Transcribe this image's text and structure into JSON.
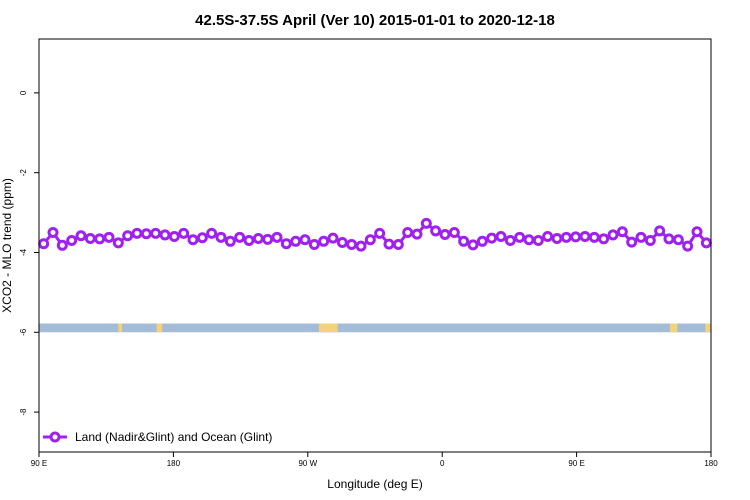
{
  "chart_data": {
    "type": "line",
    "title": "42.5S-37.5S April (Ver 10)   2015-01-01 to 2020-12-18",
    "xlabel": "Longitude (deg E)",
    "ylabel": "XCO2 - MLO trend (ppm)",
    "xlim": [
      90,
      450
    ],
    "ylim": [
      -9.0,
      1.35
    ],
    "x_ticks": [
      {
        "value": 90,
        "label": "90 E"
      },
      {
        "value": 162,
        "label": "180"
      },
      {
        "value": 234,
        "label": "90 W"
      },
      {
        "value": 306,
        "label": "0"
      },
      {
        "value": 378,
        "label": "90 E"
      },
      {
        "value": 450,
        "label": "180"
      }
    ],
    "y_ticks": [
      {
        "value": 0,
        "label": "0"
      },
      {
        "value": -2,
        "label": "-2"
      },
      {
        "value": -4,
        "label": "-4"
      },
      {
        "value": -6,
        "label": "-6"
      },
      {
        "value": -8,
        "label": "-8"
      }
    ],
    "series": [
      {
        "name": "Land (Nadir&Glint) and Ocean (Glint)",
        "color": "#a020f0",
        "x": [
          92.5,
          97.5,
          102.5,
          107.5,
          112.5,
          117.5,
          122.5,
          127.5,
          132.5,
          137.5,
          142.5,
          147.5,
          152.5,
          157.5,
          162.5,
          167.5,
          172.5,
          177.5,
          182.5,
          187.5,
          192.5,
          197.5,
          202.5,
          207.5,
          212.5,
          217.5,
          222.5,
          227.5,
          232.5,
          237.5,
          242.5,
          247.5,
          252.5,
          257.5,
          262.5,
          267.5,
          272.5,
          277.5,
          282.5,
          287.5,
          292.5,
          297.5,
          302.5,
          307.5,
          312.5,
          317.5,
          322.5,
          327.5,
          332.5,
          337.5,
          342.5,
          347.5,
          352.5,
          357.5,
          362.5,
          367.5,
          372.5,
          377.5,
          382.5,
          387.5,
          392.5,
          397.5,
          402.5,
          407.5,
          412.5,
          417.5,
          422.5,
          427.5,
          432.5,
          437.5,
          442.5,
          447.5
        ],
        "values": [
          -3.78,
          -3.5,
          -3.82,
          -3.7,
          -3.58,
          -3.65,
          -3.66,
          -3.62,
          -3.76,
          -3.58,
          -3.52,
          -3.53,
          -3.52,
          -3.56,
          -3.6,
          -3.52,
          -3.68,
          -3.63,
          -3.52,
          -3.62,
          -3.72,
          -3.62,
          -3.7,
          -3.65,
          -3.67,
          -3.62,
          -3.78,
          -3.72,
          -3.68,
          -3.8,
          -3.72,
          -3.64,
          -3.75,
          -3.8,
          -3.84,
          -3.68,
          -3.52,
          -3.79,
          -3.8,
          -3.5,
          -3.54,
          -3.27,
          -3.46,
          -3.55,
          -3.5,
          -3.72,
          -3.81,
          -3.72,
          -3.64,
          -3.6,
          -3.7,
          -3.62,
          -3.68,
          -3.7,
          -3.6,
          -3.65,
          -3.62,
          -3.61,
          -3.6,
          -3.62,
          -3.66,
          -3.56,
          -3.48,
          -3.74,
          -3.62,
          -3.7,
          -3.46,
          -3.66,
          -3.68,
          -3.84,
          -3.48,
          -3.76
        ]
      }
    ],
    "surface_band": {
      "y_top": -5.78,
      "y_bottom": -6.0,
      "ocean_color": "#a5bcd9",
      "land_color": "#f2d27a",
      "land_segments": [
        [
          132.5,
          134.5
        ],
        [
          153.0,
          156.0
        ],
        [
          240.0,
          250.0
        ],
        [
          428.0,
          432.0
        ],
        [
          447.0,
          450.0
        ]
      ]
    },
    "legend": {
      "position": "bottom-left",
      "entries": [
        "Land (Nadir&Glint) and Ocean (Glint)"
      ]
    },
    "grid": false
  }
}
